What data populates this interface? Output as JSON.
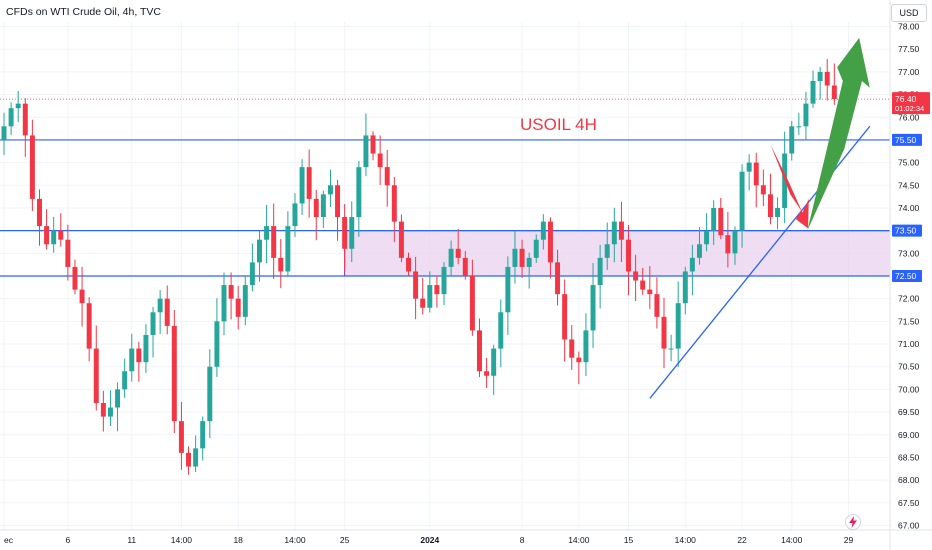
{
  "header": {
    "title": "CFDs on WTI Crude Oil, 4h, TVC",
    "currency": "USD"
  },
  "colors": {
    "up": "#26a69a",
    "down": "#f23645",
    "level_line": "#2962ff",
    "zone_fill": "#e9d2ef",
    "zone_border": "#9c27b0",
    "annotation_red": "#f23645",
    "annotation_green": "#43a047",
    "label_text": "#f23645"
  },
  "chart_data": {
    "type": "candlestick",
    "title": "",
    "annotation_text": "USOIL 4H",
    "y_axis": {
      "ticks": [
        "67.00",
        "67.50",
        "68.00",
        "68.50",
        "69.00",
        "69.50",
        "70.00",
        "70.50",
        "71.00",
        "71.50",
        "72.00",
        "72.50",
        "73.00",
        "73.50",
        "74.00",
        "74.50",
        "75.00",
        "75.50",
        "76.00",
        "76.50",
        "77.00",
        "77.50",
        "78.00"
      ],
      "range": [
        66.9,
        78.1
      ]
    },
    "x_axis": {
      "ticks": [
        {
          "label": "ec",
          "pos": 0
        },
        {
          "label": "6",
          "pos": 9
        },
        {
          "label": "11",
          "pos": 18
        },
        {
          "label": "14:00",
          "pos": 25
        },
        {
          "label": "18",
          "pos": 33
        },
        {
          "label": "14:00",
          "pos": 41
        },
        {
          "label": "25",
          "pos": 48
        },
        {
          "label": "2024",
          "pos": 60
        },
        {
          "label": "8",
          "pos": 73
        },
        {
          "label": "14:00",
          "pos": 81
        },
        {
          "label": "15",
          "pos": 88
        },
        {
          "label": "14:00",
          "pos": 96
        },
        {
          "label": "22",
          "pos": 104
        },
        {
          "label": "14:00",
          "pos": 111
        },
        {
          "label": "29",
          "pos": 119
        }
      ],
      "range": [
        0,
        124
      ]
    },
    "last_price": {
      "label": "76.40",
      "countdown": "01:02:34",
      "value": 76.4
    },
    "levels": [
      {
        "name": "resistance",
        "value": 75.5,
        "label": "75.50"
      },
      {
        "name": "zone-top",
        "value": 73.5,
        "label": "73.50"
      },
      {
        "name": "zone-bottom",
        "value": 72.5,
        "label": "72.50"
      }
    ],
    "zone": {
      "low": 72.5,
      "high": 73.5,
      "start_index": 48
    },
    "trendline": {
      "from": {
        "index": 91,
        "price": 69.8
      },
      "to": {
        "index": 122,
        "price": 75.8
      }
    },
    "closes": [
      75.8,
      76.2,
      76.3,
      75.6,
      74.2,
      73.6,
      73.2,
      73.5,
      73.3,
      72.7,
      72.2,
      71.9,
      70.9,
      69.7,
      69.4,
      69.6,
      70.0,
      70.4,
      70.9,
      70.6,
      71.2,
      71.7,
      72.0,
      71.4,
      69.3,
      68.6,
      68.3,
      68.7,
      69.3,
      70.5,
      71.5,
      72.3,
      72.0,
      71.6,
      72.3,
      72.8,
      73.3,
      73.6,
      72.9,
      72.6,
      73.6,
      74.1,
      74.9,
      74.2,
      73.8,
      74.3,
      74.5,
      73.8,
      73.1,
      73.8,
      74.9,
      75.6,
      75.2,
      74.9,
      74.5,
      73.7,
      72.9,
      72.6,
      72.0,
      71.8,
      72.3,
      72.1,
      72.7,
      73.1,
      72.9,
      72.5,
      71.3,
      70.4,
      70.3,
      70.9,
      71.7,
      72.7,
      73.1,
      72.7,
      72.9,
      73.3,
      73.7,
      72.8,
      72.1,
      71.1,
      70.7,
      70.6,
      71.3,
      72.3,
      72.9,
      73.2,
      73.7,
      73.3,
      72.6,
      72.4,
      72.2,
      72.1,
      71.6,
      70.9,
      70.9,
      71.9,
      72.6,
      72.9,
      73.2,
      73.5,
      74.0,
      73.4,
      73.0,
      73.5,
      74.8,
      75.0,
      74.5,
      74.3,
      73.8,
      74.0,
      75.2,
      75.8,
      75.8,
      76.3,
      76.8,
      77.0,
      76.7,
      76.4
    ]
  }
}
